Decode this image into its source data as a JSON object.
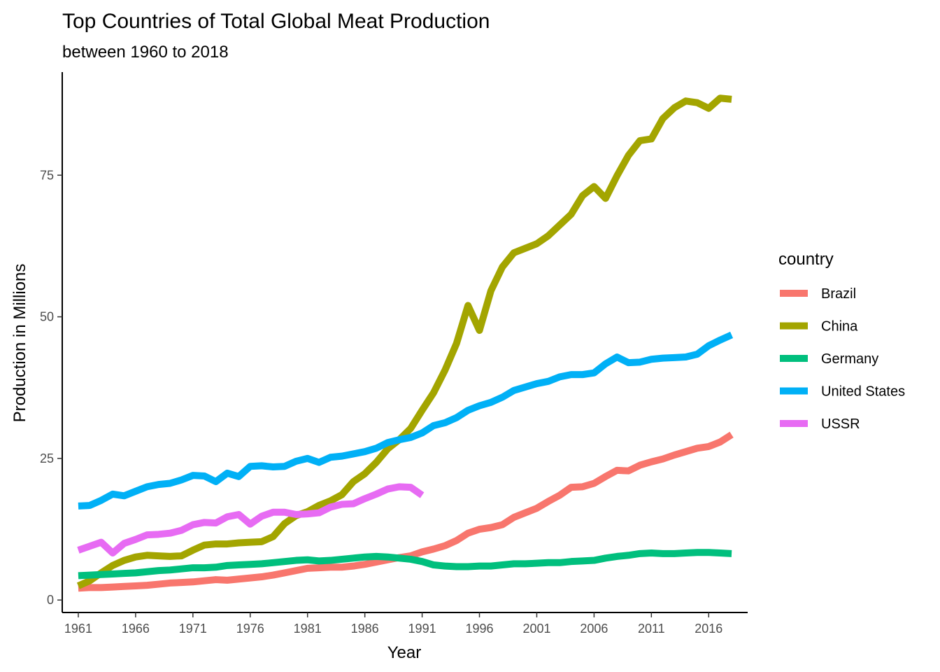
{
  "chart_data": {
    "type": "line",
    "title": "Top Countries of Total Global Meat Production",
    "subtitle": "between 1960 to 2018",
    "xlabel": "Year",
    "ylabel": "Production in Millions",
    "xlim": [
      1959.6,
      2019.4
    ],
    "ylim": [
      -2.2,
      93.2
    ],
    "x_ticks": [
      1961,
      1966,
      1971,
      1976,
      1981,
      1986,
      1991,
      1996,
      2001,
      2006,
      2011,
      2016
    ],
    "x_tick_labels": [
      "1961",
      "1966",
      "1971",
      "1976",
      "1981",
      "1986",
      "1991",
      "1996",
      "2001",
      "2006",
      "2011",
      "2016"
    ],
    "y_ticks": [
      0,
      25,
      50,
      75
    ],
    "y_tick_labels": [
      "0",
      "25",
      "50",
      "75"
    ],
    "grid": false,
    "legend": {
      "title": "country",
      "placement": "right"
    },
    "series": [
      {
        "name": "Brazil",
        "color": "#F8766D",
        "x": [
          1961,
          1962,
          1963,
          1964,
          1965,
          1966,
          1967,
          1968,
          1969,
          1970,
          1971,
          1972,
          1973,
          1974,
          1975,
          1976,
          1977,
          1978,
          1979,
          1980,
          1981,
          1982,
          1983,
          1984,
          1985,
          1986,
          1987,
          1988,
          1989,
          1990,
          1991,
          1992,
          1993,
          1994,
          1995,
          1996,
          1997,
          1998,
          1999,
          2000,
          2001,
          2002,
          2003,
          2004,
          2005,
          2006,
          2007,
          2008,
          2009,
          2010,
          2011,
          2012,
          2013,
          2014,
          2015,
          2016,
          2017,
          2018
        ],
        "values": [
          2.1,
          2.2,
          2.2,
          2.3,
          2.4,
          2.5,
          2.6,
          2.8,
          3.0,
          3.1,
          3.2,
          3.4,
          3.6,
          3.5,
          3.7,
          3.9,
          4.1,
          4.4,
          4.8,
          5.2,
          5.6,
          5.7,
          5.8,
          5.8,
          6.0,
          6.3,
          6.7,
          7.1,
          7.5,
          7.8,
          8.5,
          9.0,
          9.6,
          10.5,
          11.8,
          12.5,
          12.8,
          13.3,
          14.6,
          15.4,
          16.2,
          17.4,
          18.5,
          19.9,
          20.0,
          20.6,
          21.8,
          22.9,
          22.8,
          23.8,
          24.4,
          24.9,
          25.6,
          26.2,
          26.8,
          27.1,
          27.9,
          29.2
        ]
      },
      {
        "name": "China",
        "color": "#A3A500",
        "x": [
          1961,
          1962,
          1963,
          1964,
          1965,
          1966,
          1967,
          1968,
          1969,
          1970,
          1971,
          1972,
          1973,
          1974,
          1975,
          1976,
          1977,
          1978,
          1979,
          1980,
          1981,
          1982,
          1983,
          1984,
          1985,
          1986,
          1987,
          1988,
          1989,
          1990,
          1991,
          1992,
          1993,
          1994,
          1995,
          1996,
          1997,
          1998,
          1999,
          2000,
          2001,
          2002,
          2003,
          2004,
          2005,
          2006,
          2007,
          2008,
          2009,
          2010,
          2011,
          2012,
          2013,
          2014,
          2015,
          2016,
          2017,
          2018
        ],
        "values": [
          2.5,
          3.4,
          4.8,
          6.1,
          7.0,
          7.6,
          7.9,
          7.8,
          7.7,
          7.8,
          8.8,
          9.7,
          9.9,
          9.9,
          10.1,
          10.2,
          10.3,
          11.2,
          13.5,
          14.9,
          15.6,
          16.7,
          17.5,
          18.6,
          20.9,
          22.3,
          24.3,
          26.7,
          28.3,
          30.3,
          33.5,
          36.6,
          40.6,
          45.3,
          52.0,
          47.6,
          54.6,
          58.8,
          61.3,
          62.1,
          62.9,
          64.3,
          66.2,
          68.1,
          71.4,
          73.0,
          70.9,
          74.9,
          78.5,
          81.1,
          81.4,
          85.0,
          86.9,
          88.1,
          87.8,
          86.8,
          88.6,
          88.4
        ]
      },
      {
        "name": "Germany",
        "color": "#00BF7D",
        "x": [
          1961,
          1962,
          1963,
          1964,
          1965,
          1966,
          1967,
          1968,
          1969,
          1970,
          1971,
          1972,
          1973,
          1974,
          1975,
          1976,
          1977,
          1978,
          1979,
          1980,
          1981,
          1982,
          1983,
          1984,
          1985,
          1986,
          1987,
          1988,
          1989,
          1990,
          1991,
          1992,
          1993,
          1994,
          1995,
          1996,
          1997,
          1998,
          1999,
          2000,
          2001,
          2002,
          2003,
          2004,
          2005,
          2006,
          2007,
          2008,
          2009,
          2010,
          2011,
          2012,
          2013,
          2014,
          2015,
          2016,
          2017,
          2018
        ],
        "values": [
          4.3,
          4.4,
          4.5,
          4.6,
          4.7,
          4.8,
          5.0,
          5.2,
          5.3,
          5.5,
          5.7,
          5.7,
          5.8,
          6.1,
          6.2,
          6.3,
          6.4,
          6.6,
          6.8,
          7.0,
          7.1,
          6.9,
          7.0,
          7.2,
          7.4,
          7.6,
          7.7,
          7.6,
          7.4,
          7.2,
          6.8,
          6.2,
          6.0,
          5.9,
          5.9,
          6.0,
          6.0,
          6.2,
          6.4,
          6.4,
          6.5,
          6.6,
          6.6,
          6.8,
          6.9,
          7.0,
          7.4,
          7.7,
          7.9,
          8.2,
          8.3,
          8.2,
          8.2,
          8.3,
          8.4,
          8.4,
          8.3,
          8.2
        ]
      },
      {
        "name": "United States",
        "color": "#00B0F6",
        "x": [
          1961,
          1962,
          1963,
          1964,
          1965,
          1966,
          1967,
          1968,
          1969,
          1970,
          1971,
          1972,
          1973,
          1974,
          1975,
          1976,
          1977,
          1978,
          1979,
          1980,
          1981,
          1982,
          1983,
          1984,
          1985,
          1986,
          1987,
          1988,
          1989,
          1990,
          1991,
          1992,
          1993,
          1994,
          1995,
          1996,
          1997,
          1998,
          1999,
          2000,
          2001,
          2002,
          2003,
          2004,
          2005,
          2006,
          2007,
          2008,
          2009,
          2010,
          2011,
          2012,
          2013,
          2014,
          2015,
          2016,
          2017,
          2018
        ],
        "values": [
          16.6,
          16.7,
          17.6,
          18.7,
          18.4,
          19.2,
          20.0,
          20.4,
          20.6,
          21.2,
          22.0,
          21.9,
          20.9,
          22.4,
          21.8,
          23.6,
          23.7,
          23.5,
          23.6,
          24.5,
          25.0,
          24.3,
          25.2,
          25.4,
          25.8,
          26.2,
          26.8,
          27.8,
          28.3,
          28.7,
          29.5,
          30.8,
          31.3,
          32.2,
          33.5,
          34.3,
          34.9,
          35.8,
          37.0,
          37.6,
          38.2,
          38.6,
          39.4,
          39.8,
          39.8,
          40.1,
          41.7,
          42.9,
          41.9,
          42.0,
          42.5,
          42.7,
          42.8,
          42.9,
          43.4,
          44.9,
          45.9,
          46.8
        ]
      },
      {
        "name": "USSR",
        "color": "#E76BF3",
        "x": [
          1961,
          1962,
          1963,
          1964,
          1965,
          1966,
          1967,
          1968,
          1969,
          1970,
          1971,
          1972,
          1973,
          1974,
          1975,
          1976,
          1977,
          1978,
          1979,
          1980,
          1981,
          1982,
          1983,
          1984,
          1985,
          1986,
          1987,
          1988,
          1989,
          1990,
          1991
        ],
        "values": [
          8.8,
          9.5,
          10.2,
          8.3,
          10.0,
          10.7,
          11.5,
          11.6,
          11.8,
          12.3,
          13.3,
          13.7,
          13.6,
          14.7,
          15.1,
          13.4,
          14.8,
          15.5,
          15.5,
          15.1,
          15.2,
          15.4,
          16.4,
          16.9,
          17.0,
          17.9,
          18.7,
          19.6,
          20.0,
          19.9,
          18.5
        ]
      }
    ]
  }
}
